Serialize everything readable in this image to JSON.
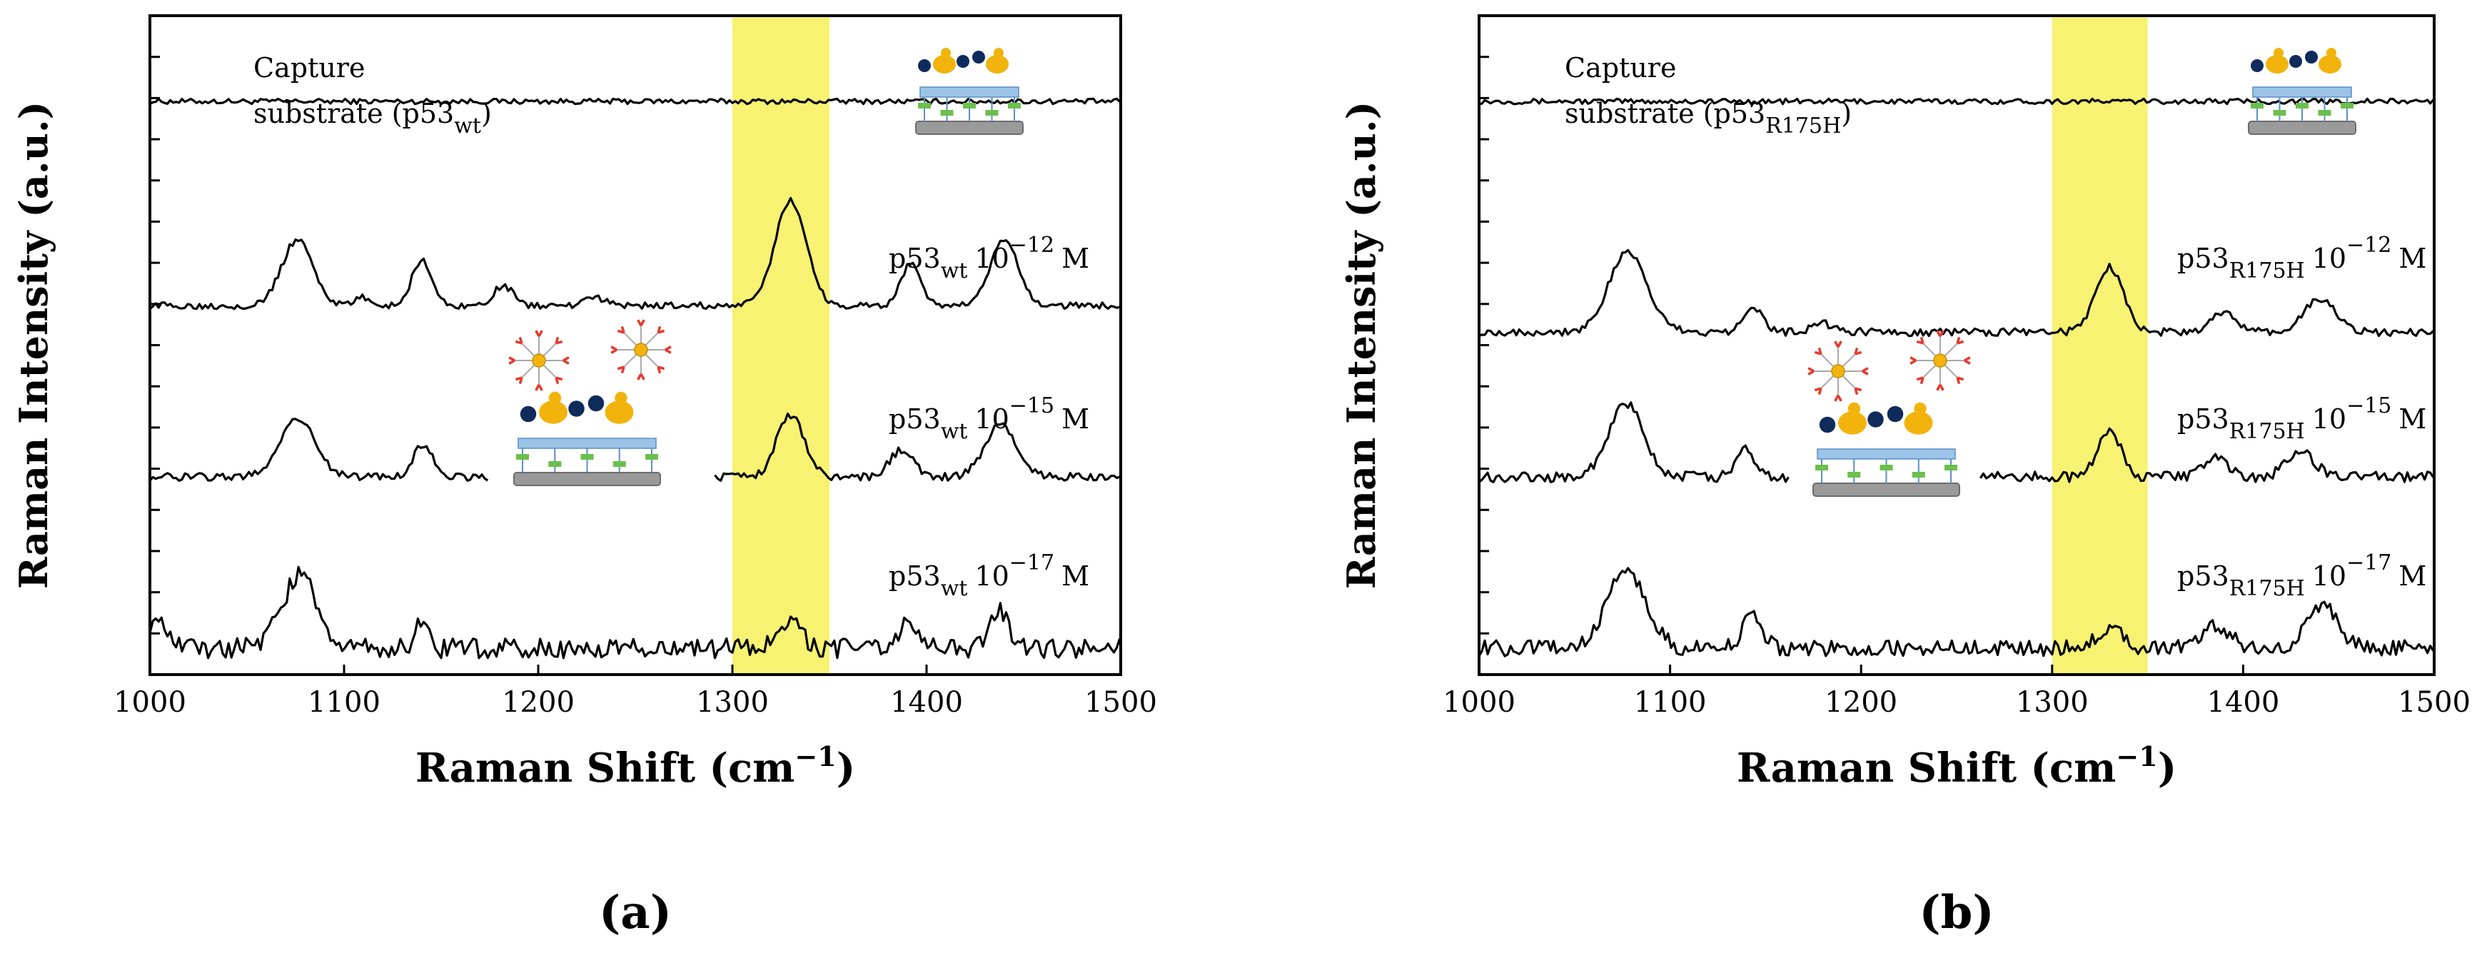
{
  "figure": {
    "panel_captions": [
      "(a)",
      "(b)"
    ]
  },
  "colors": {
    "highlight": "#F7F272",
    "trace": "#000000",
    "axis": "#000000",
    "protein_gold": "#F2B40C",
    "protein_navy": "#0E2B5C",
    "linker_red": "#E63A2E",
    "chip_grey": "#9A9A9A",
    "chip_blue": "#9CC3E8",
    "chip_green": "#6BBF4B"
  },
  "chart_data": [
    {
      "type": "line",
      "panel": "(a)",
      "xlabel": "Raman Shift (cm",
      "xlabel_sup": "−1",
      "xlabel_close": ")",
      "ylabel": "Raman Intensity (a.u.)",
      "xlim": [
        1000,
        1500
      ],
      "xticks": [
        "1000",
        "1100",
        "1200",
        "1300",
        "1400",
        "1500"
      ],
      "highlight_band": [
        1300,
        1350
      ],
      "series": [
        {
          "name": "Capture substrate (p53wt)",
          "label_main": "Capture",
          "label_line2": "substrate (p53",
          "label_sub": "wt",
          "label_close": ")",
          "baseline": 0.87,
          "noise": 0.004,
          "peaks": [],
          "gap": null
        },
        {
          "name": "p53wt 10^-12 M",
          "label_main": "p53",
          "label_sub": "wt",
          "label_conc": "10",
          "label_exp": "−12",
          "label_unit": "M",
          "baseline": 0.56,
          "noise": 0.005,
          "peaks": [
            [
              1076,
              0.1,
              8
            ],
            [
              1140,
              0.07,
              5
            ],
            [
              1110,
              0.012,
              4
            ],
            [
              1182,
              0.03,
              5
            ],
            [
              1230,
              0.012,
              5
            ],
            [
              1330,
              0.16,
              8
            ],
            [
              1392,
              0.065,
              5
            ],
            [
              1440,
              0.1,
              7
            ]
          ],
          "gap": null
        },
        {
          "name": "p53wt 10^-15 M",
          "label_main": "p53",
          "label_sub": "wt",
          "label_conc": "10",
          "label_exp": "−15",
          "label_unit": "M",
          "baseline": 0.3,
          "noise": 0.006,
          "peaks": [
            [
              1076,
              0.09,
              9
            ],
            [
              1141,
              0.05,
              5
            ],
            [
              1330,
              0.095,
              7
            ],
            [
              1387,
              0.04,
              6
            ],
            [
              1438,
              0.08,
              8
            ]
          ],
          "gap": [
            1175,
            1290
          ]
        },
        {
          "name": "p53wt 10^-17 M",
          "label_main": "p53",
          "label_sub": "wt",
          "label_conc": "10",
          "label_exp": "−17",
          "label_unit": "M",
          "baseline": 0.04,
          "noise": 0.015,
          "peaks": [
            [
              1002,
              0.04,
              6
            ],
            [
              1077,
              0.11,
              9
            ],
            [
              1140,
              0.045,
              3
            ],
            [
              1330,
              0.04,
              6
            ],
            [
              1390,
              0.035,
              5
            ],
            [
              1437,
              0.055,
              5
            ]
          ],
          "gap": null
        }
      ]
    },
    {
      "type": "line",
      "panel": "(b)",
      "xlabel": "Raman Shift (cm",
      "xlabel_sup": "−1",
      "xlabel_close": ")",
      "ylabel": "Raman Intensity (a.u.)",
      "xlim": [
        1000,
        1500
      ],
      "xticks": [
        "1000",
        "1100",
        "1200",
        "1300",
        "1400",
        "1500"
      ],
      "highlight_band": [
        1300,
        1350
      ],
      "series": [
        {
          "name": "Capture substrate (p53R175H)",
          "label_main": "Capture",
          "label_line2": "substrate (p53",
          "label_sub": "R175H",
          "label_close": ")",
          "baseline": 0.87,
          "noise": 0.004,
          "peaks": [],
          "gap": null
        },
        {
          "name": "p53R175H 10^-12 M",
          "label_main": "p53",
          "label_sub": "R175H",
          "label_conc": "10",
          "label_exp": "−12",
          "label_unit": "M",
          "baseline": 0.52,
          "noise": 0.006,
          "peaks": [
            [
              1078,
              0.12,
              10
            ],
            [
              1143,
              0.04,
              5
            ],
            [
              1180,
              0.012,
              6
            ],
            [
              1330,
              0.1,
              7
            ],
            [
              1390,
              0.03,
              6
            ],
            [
              1440,
              0.05,
              8
            ]
          ],
          "gap": null
        },
        {
          "name": "p53R175H 10^-15 M",
          "label_main": "p53",
          "label_sub": "R175H",
          "label_conc": "10",
          "label_exp": "−15",
          "label_unit": "M",
          "baseline": 0.3,
          "noise": 0.008,
          "peaks": [
            [
              1077,
              0.11,
              9
            ],
            [
              1140,
              0.04,
              5
            ],
            [
              1330,
              0.07,
              6
            ],
            [
              1385,
              0.03,
              6
            ],
            [
              1430,
              0.04,
              7
            ]
          ],
          "gap": [
            1163,
            1262
          ]
        },
        {
          "name": "p53R175H 10^-17 M",
          "label_main": "p53",
          "label_sub": "R175H",
          "label_conc": "10",
          "label_exp": "−17",
          "label_unit": "M",
          "baseline": 0.04,
          "noise": 0.012,
          "peaks": [
            [
              1077,
              0.12,
              10
            ],
            [
              1143,
              0.05,
              5
            ],
            [
              1330,
              0.03,
              7
            ],
            [
              1386,
              0.035,
              7
            ],
            [
              1442,
              0.065,
              8
            ]
          ],
          "gap": null
        }
      ]
    }
  ]
}
